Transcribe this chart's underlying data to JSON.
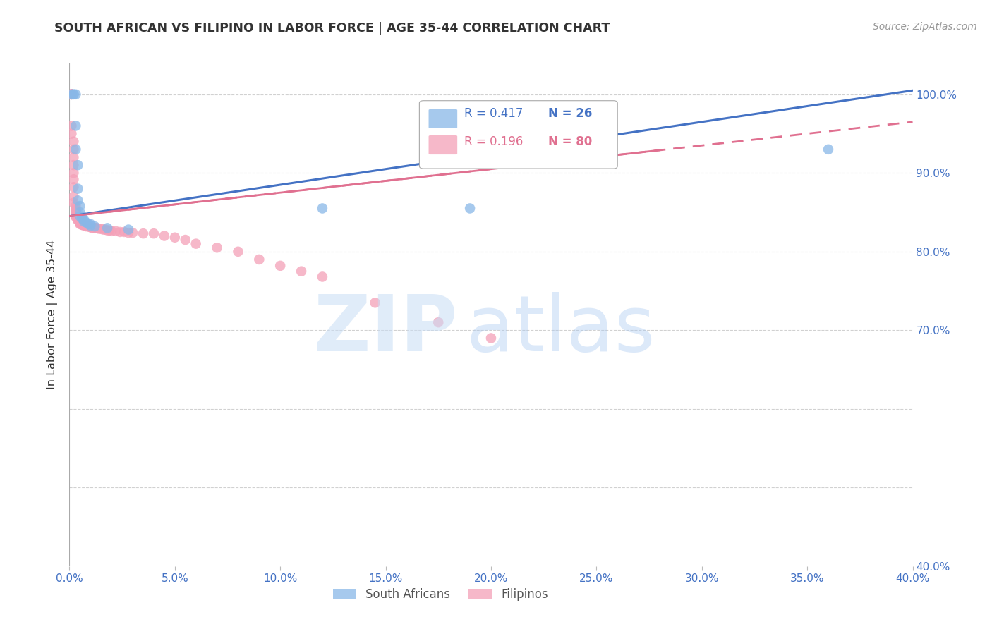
{
  "title": "SOUTH AFRICAN VS FILIPINO IN LABOR FORCE | AGE 35-44 CORRELATION CHART",
  "source": "Source: ZipAtlas.com",
  "ylabel": "In Labor Force | Age 35-44",
  "xlim": [
    0.0,
    0.4
  ],
  "ylim": [
    0.4,
    1.04
  ],
  "sa_R": 0.417,
  "sa_N": 26,
  "fil_R": 0.196,
  "fil_N": 80,
  "sa_color": "#89b8e8",
  "fil_color": "#f4a0b8",
  "sa_line_color": "#4472c4",
  "fil_line_color": "#e07090",
  "sa_line_x0": 0.0,
  "sa_line_y0": 0.845,
  "sa_line_x1": 0.4,
  "sa_line_y1": 1.005,
  "fil_line_x0": 0.0,
  "fil_line_y0": 0.845,
  "fil_line_x1": 0.4,
  "fil_line_y1": 0.965,
  "right_ytick_values": [
    1.0,
    0.9,
    0.8,
    0.7,
    0.4
  ],
  "right_ytick_labels": [
    "100.0%",
    "90.0%",
    "80.0%",
    "70.0%",
    "40.0%"
  ],
  "watermark_zip": "ZIP",
  "watermark_atlas": "atlas",
  "sa_scatter_x": [
    0.001,
    0.002,
    0.002,
    0.003,
    0.003,
    0.003,
    0.004,
    0.004,
    0.004,
    0.005,
    0.005,
    0.005,
    0.006,
    0.006,
    0.007,
    0.007,
    0.008,
    0.009,
    0.01,
    0.01,
    0.012,
    0.018,
    0.028,
    0.12,
    0.19,
    0.36
  ],
  "sa_scatter_y": [
    1.0,
    1.0,
    1.0,
    1.0,
    0.96,
    0.93,
    0.91,
    0.88,
    0.865,
    0.858,
    0.85,
    0.845,
    0.845,
    0.842,
    0.84,
    0.838,
    0.837,
    0.835,
    0.835,
    0.833,
    0.832,
    0.83,
    0.828,
    0.855,
    0.855,
    0.93
  ],
  "fil_scatter_x": [
    0.001,
    0.001,
    0.001,
    0.001,
    0.001,
    0.001,
    0.001,
    0.001,
    0.001,
    0.001,
    0.002,
    0.002,
    0.002,
    0.002,
    0.002,
    0.002,
    0.002,
    0.002,
    0.002,
    0.003,
    0.003,
    0.003,
    0.003,
    0.003,
    0.003,
    0.003,
    0.003,
    0.003,
    0.004,
    0.004,
    0.004,
    0.004,
    0.004,
    0.005,
    0.005,
    0.005,
    0.005,
    0.005,
    0.005,
    0.006,
    0.006,
    0.006,
    0.007,
    0.007,
    0.008,
    0.008,
    0.009,
    0.01,
    0.01,
    0.011,
    0.012,
    0.012,
    0.013,
    0.014,
    0.015,
    0.016,
    0.017,
    0.018,
    0.019,
    0.02,
    0.022,
    0.024,
    0.026,
    0.028,
    0.03,
    0.035,
    0.04,
    0.045,
    0.05,
    0.055,
    0.06,
    0.07,
    0.08,
    0.09,
    0.1,
    0.11,
    0.12,
    0.145,
    0.175,
    0.2
  ],
  "fil_scatter_y": [
    1.0,
    1.0,
    1.0,
    1.0,
    1.0,
    1.0,
    1.0,
    1.0,
    0.96,
    0.95,
    0.94,
    0.93,
    0.92,
    0.91,
    0.9,
    0.892,
    0.882,
    0.87,
    0.862,
    0.858,
    0.854,
    0.852,
    0.85,
    0.85,
    0.848,
    0.846,
    0.845,
    0.844,
    0.843,
    0.842,
    0.842,
    0.84,
    0.84,
    0.839,
    0.838,
    0.837,
    0.837,
    0.836,
    0.835,
    0.835,
    0.834,
    0.834,
    0.834,
    0.833,
    0.833,
    0.832,
    0.832,
    0.831,
    0.831,
    0.83,
    0.83,
    0.83,
    0.83,
    0.829,
    0.829,
    0.828,
    0.828,
    0.827,
    0.827,
    0.826,
    0.826,
    0.825,
    0.825,
    0.824,
    0.824,
    0.823,
    0.823,
    0.82,
    0.818,
    0.815,
    0.81,
    0.805,
    0.8,
    0.79,
    0.782,
    0.775,
    0.768,
    0.735,
    0.71,
    0.69
  ]
}
